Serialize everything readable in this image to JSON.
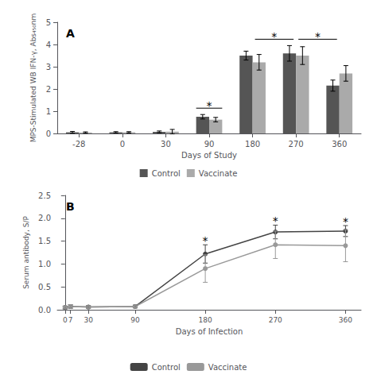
{
  "chart_data": [
    {
      "type": "bar",
      "title": "A",
      "xlabel": "Days of Study",
      "ylabel": "MPS-Stimulated WB IFN-γ, Abs₄₅₀nm",
      "categories": [
        "-28",
        "0",
        "30",
        "90",
        "180",
        "270",
        "360"
      ],
      "series": [
        {
          "name": "Control",
          "color": "#555555",
          "values": [
            0.05,
            0.05,
            0.07,
            0.75,
            3.5,
            3.6,
            2.15
          ],
          "errors": [
            0.04,
            0.03,
            0.04,
            0.1,
            0.2,
            0.35,
            0.25
          ]
        },
        {
          "name": "Vaccinate",
          "color": "#aaaaaa",
          "values": [
            0.04,
            0.05,
            0.08,
            0.62,
            3.2,
            3.5,
            2.7
          ],
          "errors": [
            0.03,
            0.03,
            0.1,
            0.1,
            0.35,
            0.4,
            0.35
          ]
        }
      ],
      "ylim": [
        0,
        5
      ],
      "yticks": [
        0,
        1,
        2,
        3,
        4,
        5
      ],
      "grid": false,
      "legend": "bottom",
      "annotations": [
        {
          "text": "*",
          "categories": [
            "180",
            "270"
          ]
        },
        {
          "text": "*",
          "categories": [
            "270",
            "360"
          ]
        },
        {
          "text": "*",
          "categories": [
            "90"
          ]
        }
      ]
    },
    {
      "type": "line",
      "title": "B",
      "xlabel": "Days of Infection",
      "ylabel": "Serum antibody, S/P",
      "x": [
        0,
        7,
        30,
        90,
        180,
        270,
        360
      ],
      "series": [
        {
          "name": "Control",
          "color": "#444444",
          "marker": "circle",
          "values": [
            0.05,
            0.07,
            0.06,
            0.07,
            1.22,
            1.7,
            1.72
          ],
          "errors": [
            0.03,
            0.04,
            0.03,
            0.03,
            0.2,
            0.15,
            0.12
          ]
        },
        {
          "name": "Vaccinate",
          "color": "#999999",
          "marker": "circle",
          "values": [
            0.05,
            0.07,
            0.06,
            0.07,
            0.9,
            1.42,
            1.4
          ],
          "errors": [
            0.03,
            0.04,
            0.03,
            0.03,
            0.3,
            0.3,
            0.35
          ]
        }
      ],
      "xlim": [
        -10,
        380
      ],
      "xticks": [
        0,
        7,
        30,
        90,
        180,
        270,
        360
      ],
      "ylim": [
        0,
        2.5
      ],
      "yticks": [
        {
          "value": 0,
          "label": "0.0"
        },
        0.5,
        {
          "value": 1.0,
          "label": "1.0"
        },
        1.5,
        {
          "value": 2.0,
          "label": "2.0"
        },
        2.5
      ],
      "grid": false,
      "legend": "bottom",
      "annotations": [
        {
          "text": "*",
          "x": 180
        },
        {
          "text": "*",
          "x": 270
        },
        {
          "text": "*",
          "x": 360
        }
      ]
    }
  ]
}
